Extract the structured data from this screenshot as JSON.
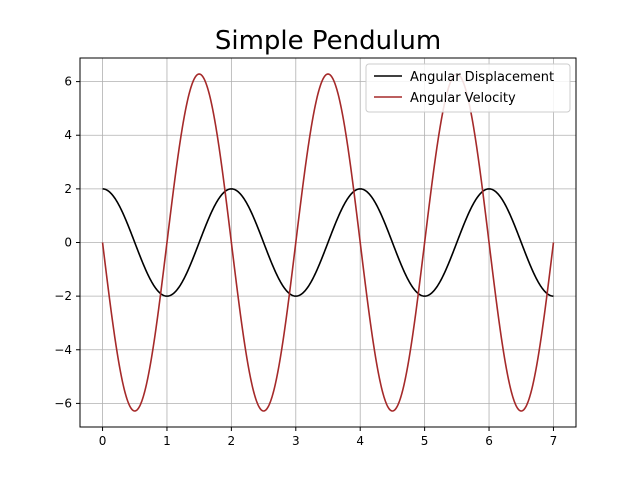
{
  "chart_data": {
    "type": "line",
    "title": "Simple Pendulum",
    "xlabel": "",
    "ylabel": "",
    "xlim": [
      -0.35,
      7.35
    ],
    "ylim": [
      -6.88,
      6.88
    ],
    "xticks": [
      0,
      1,
      2,
      3,
      4,
      5,
      6,
      7
    ],
    "yticks": [
      -6,
      -4,
      -2,
      0,
      2,
      4,
      6
    ],
    "grid": true,
    "legend_position": "top-right",
    "series": [
      {
        "name": "Angular Displacement",
        "color": "#000000",
        "function": "cos",
        "amplitude": 2,
        "angular_frequency": 3.14159,
        "x_range": [
          0,
          7
        ]
      },
      {
        "name": "Angular Velocity",
        "color": "#a52a2a",
        "function": "neg_sin",
        "amplitude": 6.283,
        "angular_frequency": 3.14159,
        "x_range": [
          0,
          7
        ]
      }
    ]
  }
}
